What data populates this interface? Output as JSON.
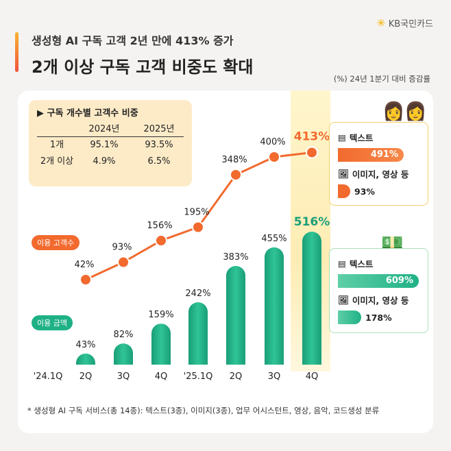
{
  "brand": "KB국민카드",
  "title_line1": "생성형 AI 구독 고객 2년 만에 413% 증가",
  "title_line2": "2개 이상 구독 고객 비중도 확대",
  "unit_note": "(%) 24년 1분기 대비 증감률",
  "table": {
    "title": "구독 개수별 고객수 비중",
    "headers": [
      "",
      "2024년",
      "2025년"
    ],
    "rows": [
      [
        "1개",
        "95.1%",
        "93.5%"
      ],
      [
        "2개 이상",
        "4.9%",
        "6.5%"
      ]
    ]
  },
  "colors": {
    "customers": "#f26a2e",
    "amount": "#1fb186",
    "highlight": "#fde9a6"
  },
  "chart_data": {
    "type": "bar+line",
    "categories": [
      "'24.1Q",
      "2Q",
      "3Q",
      "4Q",
      "'25.1Q",
      "2Q",
      "3Q",
      "4Q"
    ],
    "series": [
      {
        "name": "이용 고객수",
        "type": "line",
        "x": [
          "2Q",
          "3Q",
          "4Q",
          "'25.1Q",
          "2Q",
          "3Q",
          "4Q"
        ],
        "values": [
          42,
          93,
          156,
          195,
          348,
          400,
          413
        ],
        "labels": [
          "42%",
          "93%",
          "156%",
          "195%",
          "348%",
          "400%",
          "413%"
        ]
      },
      {
        "name": "이용 금액",
        "type": "bar",
        "x": [
          "2Q",
          "3Q",
          "4Q",
          "'25.1Q",
          "2Q",
          "3Q",
          "4Q"
        ],
        "values": [
          43,
          82,
          159,
          242,
          383,
          455,
          516
        ],
        "labels": [
          "43%",
          "82%",
          "159%",
          "242%",
          "383%",
          "455%",
          "516%"
        ]
      }
    ],
    "highlight_category": "4Q"
  },
  "popups": {
    "customers": {
      "text_label": "텍스트",
      "text_value": "491%",
      "text_pct": 491,
      "image_label": "이미지, 영상 등",
      "image_value": "93%",
      "image_pct": 93
    },
    "amount": {
      "text_label": "텍스트",
      "text_value": "609%",
      "text_pct": 609,
      "image_label": "이미지, 영상 등",
      "image_value": "178%",
      "image_pct": 178
    }
  },
  "footnote": "* 생성형 AI 구독 서비스(총 14종): 텍스트(3종), 이미지(3종), 업무 어시스턴트, 영상, 음악, 코드생성 분류"
}
